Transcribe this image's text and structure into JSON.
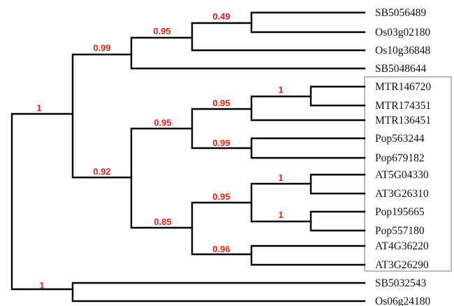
{
  "colors": {
    "branch": "#000000",
    "support": "#e2231a",
    "box": "#a8a8a8",
    "text": "#111111"
  },
  "leaves": [
    "SB5056489",
    "Os03g02180",
    "Os10g36848",
    "SB5048644",
    "MTR146720",
    "MTR174351",
    "MTR136451",
    "Pop563244",
    "Pop679182",
    "AT5G04330",
    "AT3G26310",
    "Pop195665",
    "Pop557180",
    "AT4G36220",
    "AT3G26290",
    "SB5032543",
    "Os06g24180"
  ],
  "support": {
    "root": "1",
    "grass": "0.99",
    "grass_inner": "0.95",
    "sb_os03": "0.49",
    "dicot": "0.92",
    "mtr_pop": "0.95",
    "mtr_group": "0.95",
    "mtr_pair": "1",
    "pop_pair1": "0.99",
    "at_group": "0.85",
    "at_pop": "0.95",
    "at_pair1": "1",
    "pop_pair2": "1",
    "at_pair2": "0.96",
    "sb_os06": "1"
  }
}
